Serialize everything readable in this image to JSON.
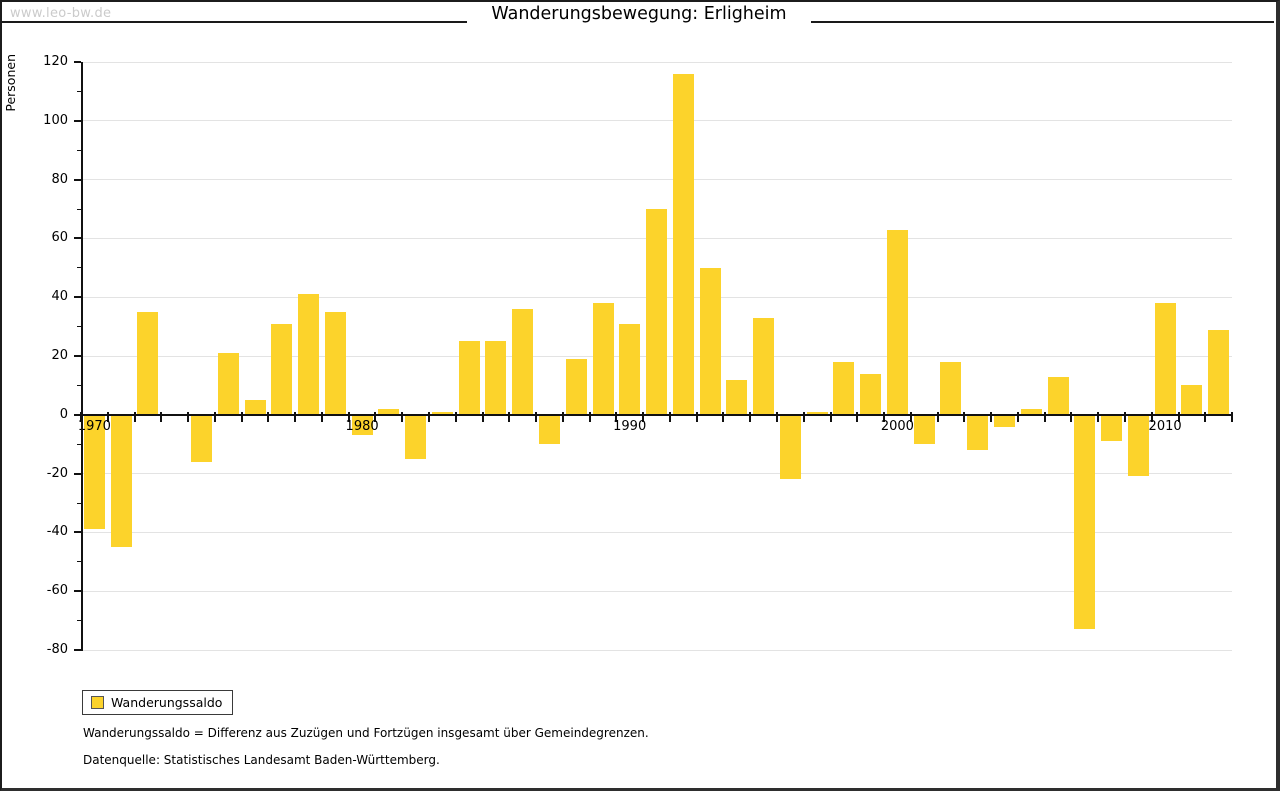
{
  "header": {
    "watermark": "www.leo-bw.de",
    "title": "Wanderungsbewegung: Erligheim"
  },
  "chart_data": {
    "type": "bar",
    "title": "Wanderungsbewegung: Erligheim",
    "xlabel": "",
    "ylabel": "Personen",
    "ylim": [
      -80,
      120
    ],
    "ytick_step": 20,
    "ytick_labels": [
      "120",
      "100",
      "80",
      "60",
      "40",
      "20",
      "0",
      "-20",
      "-40",
      "-60",
      "-80"
    ],
    "grid": true,
    "legend_position": "bottom-left",
    "bar_color": "#FCD32B",
    "categories": [
      1970,
      1971,
      1972,
      1973,
      1974,
      1975,
      1976,
      1977,
      1978,
      1979,
      1980,
      1981,
      1982,
      1983,
      1984,
      1985,
      1986,
      1987,
      1988,
      1989,
      1990,
      1991,
      1992,
      1993,
      1994,
      1995,
      1996,
      1997,
      1998,
      1999,
      2000,
      2001,
      2002,
      2003,
      2004,
      2005,
      2006,
      2007,
      2008,
      2009,
      2010,
      2011,
      2012
    ],
    "series": [
      {
        "name": "Wanderungssaldo",
        "values": [
          -39,
          -45,
          35,
          0,
          -16,
          21,
          5,
          31,
          41,
          35,
          -7,
          2,
          -15,
          1,
          25,
          25,
          36,
          -10,
          19,
          38,
          31,
          70,
          116,
          50,
          12,
          33,
          -22,
          1,
          18,
          14,
          63,
          -10,
          18,
          -12,
          -4,
          2,
          13,
          -73,
          -9,
          -21,
          38,
          10,
          29
        ]
      }
    ],
    "xtick_labels": [
      "1970",
      "1980",
      "1990",
      "2000",
      "2010"
    ],
    "xtick_indices": [
      0,
      10,
      20,
      30,
      40
    ]
  },
  "legend": {
    "label": "Wanderungssaldo",
    "swatch_color": "#FCD32B"
  },
  "footnotes": {
    "definition": "Wanderungssaldo = Differenz aus Zuzügen und Fortzügen insgesamt über Gemeindegrenzen.",
    "source": "Datenquelle: Statistisches Landesamt Baden-Württemberg."
  }
}
